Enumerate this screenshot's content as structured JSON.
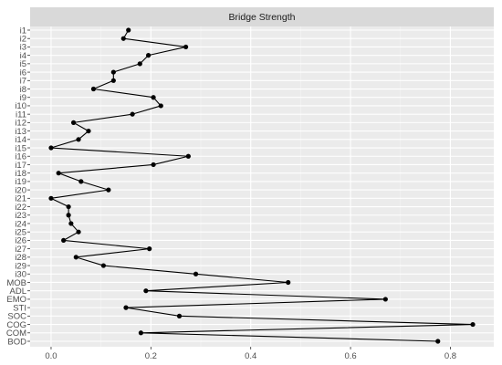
{
  "chart_data": {
    "type": "line",
    "title": "Bridge Strength",
    "categories": [
      "i1",
      "i2",
      "i3",
      "i4",
      "i5",
      "i6",
      "i7",
      "i8",
      "i9",
      "i10",
      "i11",
      "i12",
      "i13",
      "i14",
      "i15",
      "i16",
      "i17",
      "i18",
      "i19",
      "i20",
      "i21",
      "i22",
      "i23",
      "i24",
      "i25",
      "i26",
      "i27",
      "i28",
      "i29",
      "i30",
      "MOB",
      "ADL",
      "EMO",
      "STI",
      "SOC",
      "COG",
      "COM",
      "BOD"
    ],
    "values": [
      0.155,
      0.145,
      0.27,
      0.195,
      0.178,
      0.125,
      0.125,
      0.085,
      0.205,
      0.22,
      0.163,
      0.045,
      0.075,
      0.055,
      0.0,
      0.275,
      0.205,
      0.015,
      0.06,
      0.115,
      0.0,
      0.035,
      0.035,
      0.04,
      0.055,
      0.025,
      0.197,
      0.05,
      0.105,
      0.29,
      0.475,
      0.19,
      0.67,
      0.15,
      0.257,
      0.845,
      0.18,
      0.775
    ],
    "x_ticks": [
      "0.0",
      "0.2",
      "0.4",
      "0.6",
      "0.8"
    ],
    "xlim": [
      -0.042,
      0.887
    ],
    "grid": true,
    "xlabel": "",
    "ylabel": ""
  },
  "colors": {
    "panel": "#ebebeb",
    "strip": "#d9d9d9",
    "grid_major": "#ffffff",
    "grid_minor": "#f5f5f5",
    "line": "#000000",
    "tick": "#333333"
  }
}
